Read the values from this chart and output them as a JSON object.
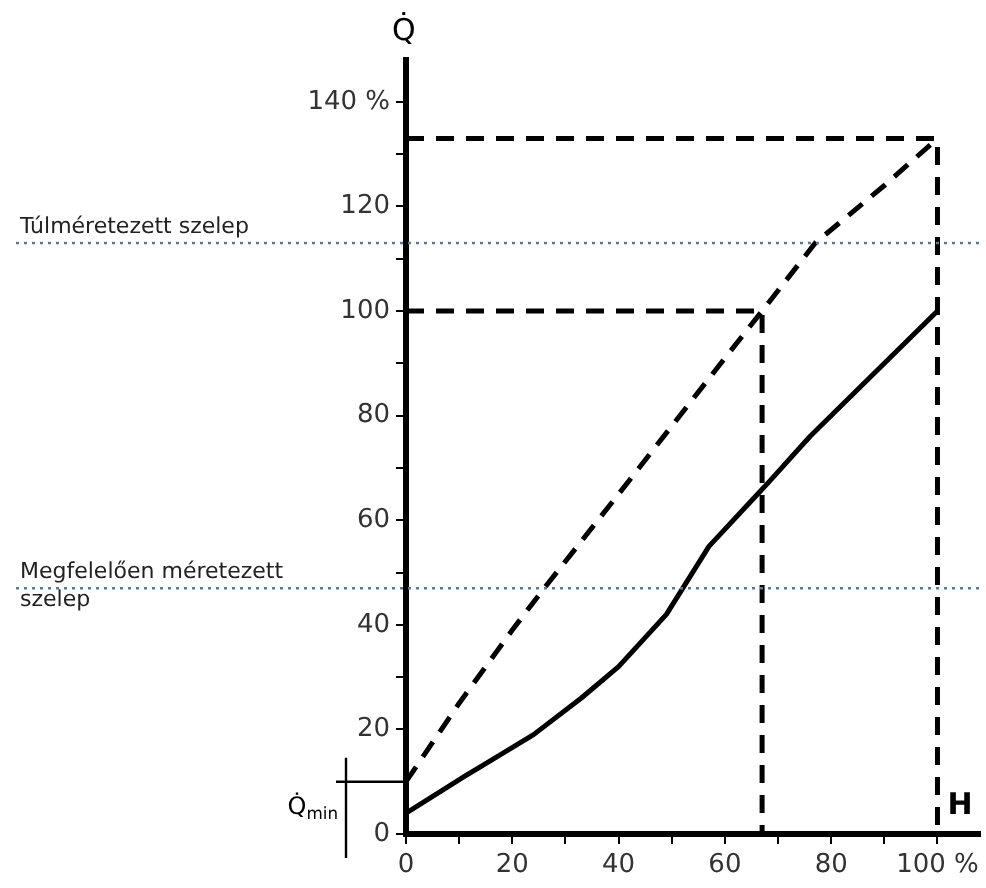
{
  "chart_data": {
    "type": "line",
    "xlabel": "H",
    "ylabel": "Q̇",
    "xlim": [
      0,
      108
    ],
    "ylim": [
      0,
      148
    ],
    "xticks": [
      0,
      {
        "value": 10,
        "label": null
      },
      20,
      {
        "value": 30,
        "label": null
      },
      40,
      {
        "value": 50,
        "label": null
      },
      60,
      {
        "value": 70,
        "label": null
      },
      80,
      {
        "value": 90,
        "label": null
      },
      {
        "value": 100,
        "label": "100 %"
      }
    ],
    "yticks": [
      0,
      {
        "value": 10,
        "label": null
      },
      20,
      {
        "value": 30,
        "label": null
      },
      40,
      {
        "value": 50,
        "label": null
      },
      60,
      {
        "value": 70,
        "label": null
      },
      80,
      {
        "value": 90,
        "label": null
      },
      100,
      {
        "value": 110,
        "label": null
      },
      120,
      {
        "value": 130,
        "label": null
      },
      {
        "value": 140,
        "label": "140 %"
      }
    ],
    "grid": false,
    "legend": false,
    "marker": "none",
    "series": [
      {
        "type": "line",
        "color": "#000000",
        "line_style": "solid",
        "x": [
          0,
          11,
          24,
          33,
          40,
          49,
          57,
          68,
          76,
          100
        ],
        "values": [
          4,
          11,
          19,
          26,
          32,
          42,
          55,
          67,
          76,
          100
        ]
      },
      {
        "type": "line",
        "color": "#000000",
        "line_style": "dashed",
        "x": [
          0,
          10,
          20,
          26,
          40,
          50,
          60,
          67,
          77,
          90,
          100
        ],
        "values": [
          10,
          25,
          39,
          47,
          65,
          78,
          91,
          100,
          113,
          124,
          133
        ]
      },
      {
        "type": "line",
        "color": "#000000",
        "line_style": "dashed",
        "x": [
          0,
          100,
          100
        ],
        "values": [
          133,
          133,
          0
        ]
      },
      {
        "type": "line",
        "color": "#000000",
        "line_style": "dashed",
        "x": [
          0,
          67,
          67
        ],
        "values": [
          100,
          100,
          0
        ]
      }
    ],
    "ref_lines": [
      {
        "axis": "y",
        "value": 113,
        "label": "Túlméretezett szelep",
        "color": "#5b7a9a",
        "line_style": "dotted"
      },
      {
        "axis": "y",
        "value": 47,
        "label": "Megfelelően méretezett szelep",
        "color": "#5b7a9a",
        "line_style": "dotted"
      }
    ],
    "annotations": [
      {
        "text": "Q̇$_{min}$",
        "x": 0,
        "y": 10
      }
    ]
  }
}
